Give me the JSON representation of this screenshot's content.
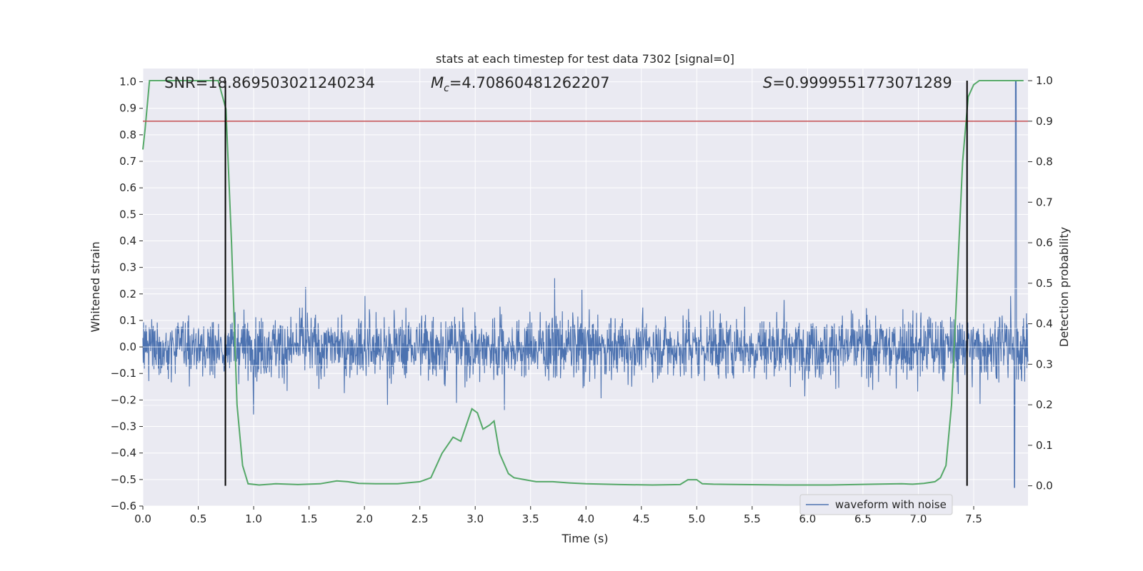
{
  "chart_data": {
    "type": "line",
    "title": "stats at each timestep for test data 7302 [signal=0]",
    "xlabel": "Time (s)",
    "ylabel": "Whitened strain",
    "y2label": "Detection probability",
    "xlim": [
      0.0,
      7.99
    ],
    "ylim": [
      -0.6,
      1.05
    ],
    "y2lim": [
      -0.05,
      1.03
    ],
    "xticks": [
      "0.0",
      "0.5",
      "1.0",
      "1.5",
      "2.0",
      "2.5",
      "3.0",
      "3.5",
      "4.0",
      "4.5",
      "5.0",
      "5.5",
      "6.0",
      "6.5",
      "7.0",
      "7.5"
    ],
    "yticks": [
      "1.0",
      "0.9",
      "0.8",
      "0.7",
      "0.6",
      "0.5",
      "0.4",
      "0.3",
      "0.2",
      "0.1",
      "0.0",
      "−0.1",
      "−0.2",
      "−0.3",
      "−0.4",
      "−0.5",
      "−0.6"
    ],
    "y2ticks": [
      "1.0",
      "0.9",
      "0.8",
      "0.7",
      "0.6",
      "0.5",
      "0.4",
      "0.3",
      "0.2",
      "0.1",
      "0.0"
    ],
    "grid": true,
    "legend_position": "lower-right",
    "annotations": {
      "snr": "SNR=18.869503021240234",
      "mc_symbol": "M",
      "mc_sub": "c",
      "mc_value": "=4.70860481262207",
      "s_symbol": "S",
      "s_value": "=0.9999551773071289"
    },
    "series": [
      {
        "name": "waveform with noise",
        "axis": "left",
        "color": "#4c72b0",
        "kind": "noise",
        "x_range": [
          0.0,
          7.99
        ],
        "amplitude_typical": 0.22,
        "spike_max": 1.0,
        "spike_min": -0.53,
        "spike_time": 7.88
      },
      {
        "axis": "right",
        "color": "#55a868",
        "x": [
          0.0,
          0.02,
          0.06,
          0.12,
          0.2,
          0.3,
          0.4,
          0.5,
          0.6,
          0.68,
          0.75,
          0.8,
          0.85,
          0.9,
          0.95,
          1.05,
          1.2,
          1.4,
          1.6,
          1.75,
          1.85,
          1.95,
          2.1,
          2.3,
          2.5,
          2.6,
          2.7,
          2.8,
          2.87,
          2.92,
          2.97,
          3.02,
          3.07,
          3.13,
          3.17,
          3.22,
          3.3,
          3.35,
          3.45,
          3.55,
          3.7,
          3.85,
          4.0,
          4.3,
          4.6,
          4.85,
          4.92,
          5.0,
          5.05,
          5.15,
          5.4,
          5.8,
          6.2,
          6.6,
          6.85,
          6.95,
          7.05,
          7.15,
          7.2,
          7.25,
          7.3,
          7.35,
          7.4,
          7.45,
          7.5,
          7.55,
          7.65,
          7.8,
          7.95
        ],
        "values": [
          0.83,
          0.88,
          1.0,
          1.0,
          1.0,
          1.0,
          1.0,
          1.0,
          1.0,
          1.0,
          0.93,
          0.6,
          0.2,
          0.05,
          0.005,
          0.002,
          0.005,
          0.003,
          0.005,
          0.012,
          0.01,
          0.006,
          0.005,
          0.005,
          0.01,
          0.02,
          0.08,
          0.12,
          0.11,
          0.15,
          0.19,
          0.18,
          0.14,
          0.15,
          0.16,
          0.08,
          0.03,
          0.02,
          0.015,
          0.01,
          0.01,
          0.007,
          0.005,
          0.003,
          0.002,
          0.003,
          0.015,
          0.015,
          0.005,
          0.004,
          0.003,
          0.002,
          0.002,
          0.004,
          0.005,
          0.004,
          0.006,
          0.01,
          0.02,
          0.05,
          0.2,
          0.5,
          0.8,
          0.96,
          0.99,
          1.0,
          1.0,
          1.0,
          1.0
        ]
      }
    ],
    "hlines": [
      {
        "axis": "right",
        "value": 0.9,
        "color": "#c44e52"
      }
    ],
    "vlines": [
      {
        "x": 0.745,
        "color": "#000000"
      },
      {
        "x": 7.44,
        "color": "#000000"
      }
    ]
  }
}
